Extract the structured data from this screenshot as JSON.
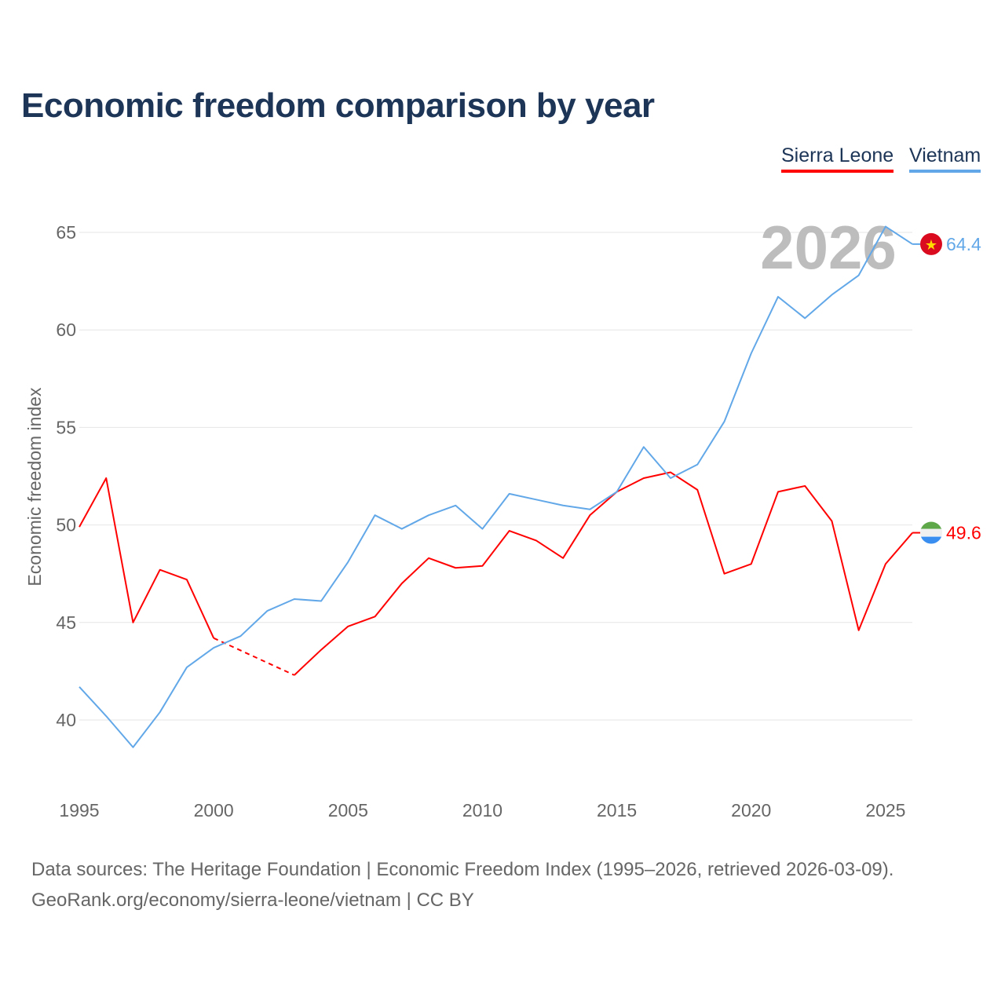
{
  "title": "Economic freedom comparison by year",
  "footer": {
    "line1": "Data sources: The Heritage Foundation | Economic Freedom Index (1995–2026, retrieved 2026-03-09).",
    "line2": "GeoRank.org/economy/sierra-leone/vietnam | CC BY"
  },
  "chart_data": {
    "type": "line",
    "title": "Economic freedom comparison by year",
    "xlabel": "",
    "ylabel": "Economic freedom index",
    "year_label": "2026",
    "xlim": [
      1995,
      2026
    ],
    "ylim": [
      36.5,
      67
    ],
    "yticks": [
      40,
      45,
      50,
      55,
      60,
      65
    ],
    "xticks": [
      1995,
      2000,
      2005,
      2010,
      2015,
      2020,
      2025
    ],
    "grid": true,
    "legend": "top-right",
    "x": [
      1995,
      1996,
      1997,
      1998,
      1999,
      2000,
      2001,
      2002,
      2003,
      2004,
      2005,
      2006,
      2007,
      2008,
      2009,
      2010,
      2011,
      2012,
      2013,
      2014,
      2015,
      2016,
      2017,
      2018,
      2019,
      2020,
      2021,
      2022,
      2023,
      2024,
      2025,
      2026
    ],
    "series": [
      {
        "name": "Sierra Leone",
        "color": "#ff0000",
        "end_label": "49.6",
        "values": [
          49.9,
          52.4,
          45.0,
          47.7,
          47.2,
          44.2,
          null,
          null,
          42.3,
          43.6,
          44.8,
          45.3,
          47.0,
          48.3,
          47.8,
          47.9,
          49.7,
          49.2,
          48.3,
          50.5,
          51.7,
          52.4,
          52.7,
          51.8,
          47.5,
          48.0,
          51.7,
          52.0,
          50.2,
          44.6,
          48.0,
          49.6
        ]
      },
      {
        "name": "Vietnam",
        "color": "#62a8e8",
        "end_label": "64.4",
        "values": [
          41.7,
          40.2,
          38.6,
          40.4,
          42.7,
          43.7,
          44.3,
          45.6,
          46.2,
          46.1,
          48.1,
          50.5,
          49.8,
          50.5,
          51.0,
          49.8,
          51.6,
          51.3,
          51.0,
          50.8,
          51.7,
          54.0,
          52.4,
          53.1,
          55.3,
          58.8,
          61.7,
          60.6,
          61.8,
          62.8,
          65.3,
          64.4
        ]
      }
    ]
  }
}
